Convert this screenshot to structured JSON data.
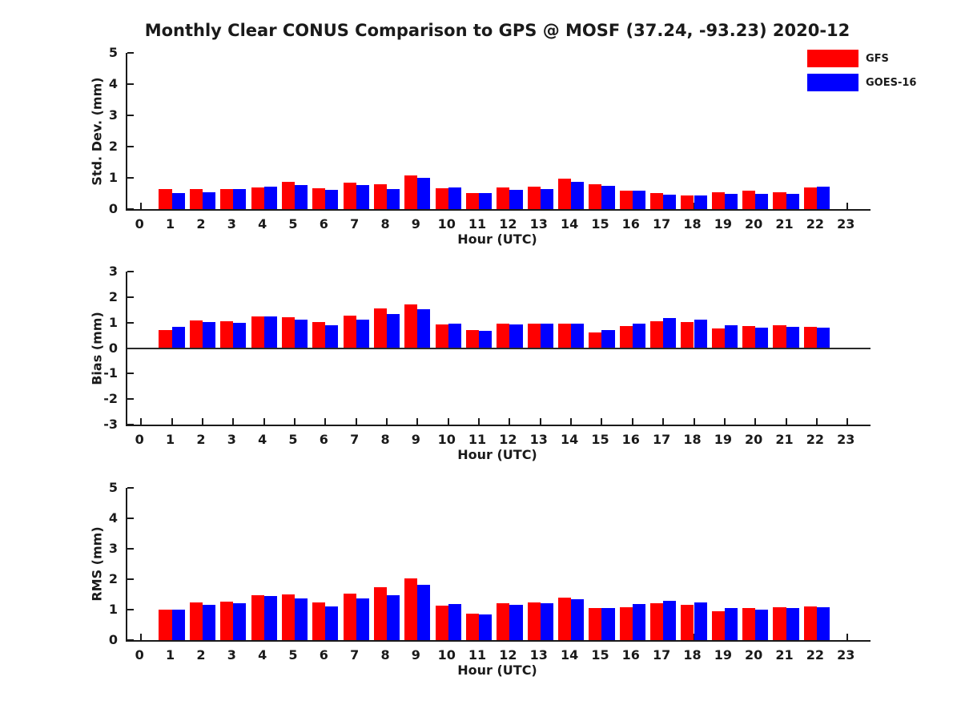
{
  "figure": {
    "title": "Monthly Clear CONUS Comparison to GPS @ MOSF (37.24, -93.23) 2020-12",
    "background": "#ffffff",
    "text_color": "#1a1a1a",
    "legend": [
      {
        "label": "GFS",
        "color": "#ff0000"
      },
      {
        "label": "GOES-16",
        "color": "#0000ff"
      }
    ]
  },
  "chart_data": [
    {
      "type": "bar",
      "panel": "std-dev",
      "title": "Monthly Clear CONUS Comparison to GPS @ MOSF (37.24, -93.23) 2020-12",
      "xlabel": "Hour (UTC)",
      "ylabel": "Std. Dev. (mm)",
      "ylim": [
        0,
        5
      ],
      "yticks": [
        0,
        1,
        2,
        3,
        4,
        5
      ],
      "xticks": [
        0,
        1,
        2,
        3,
        4,
        5,
        6,
        7,
        8,
        9,
        10,
        11,
        12,
        13,
        14,
        15,
        16,
        17,
        18,
        19,
        20,
        21,
        22,
        23
      ],
      "categories": [
        0,
        1,
        2,
        3,
        4,
        5,
        6,
        7,
        8,
        9,
        10,
        11,
        12,
        13,
        14,
        15,
        16,
        17,
        18,
        19,
        20,
        21,
        22,
        23
      ],
      "grid": false,
      "legend_entries": [
        "GFS",
        "GOES-16"
      ],
      "legend_position": "upper-right-above-axes",
      "series": [
        {
          "name": "GFS",
          "color": "#ff0000",
          "values": [
            null,
            0.65,
            0.63,
            0.65,
            0.68,
            0.87,
            0.67,
            0.85,
            0.8,
            1.08,
            0.66,
            0.51,
            0.68,
            0.73,
            0.98,
            0.8,
            0.6,
            0.51,
            0.43,
            0.54,
            0.58,
            0.55,
            0.7,
            null
          ]
        },
        {
          "name": "GOES-16",
          "color": "#0000ff",
          "values": [
            null,
            0.52,
            0.55,
            0.65,
            0.73,
            0.77,
            0.62,
            0.77,
            0.64,
            0.99,
            0.7,
            0.51,
            0.62,
            0.64,
            0.87,
            0.74,
            0.6,
            0.45,
            0.43,
            0.48,
            0.48,
            0.5,
            0.73,
            null
          ]
        }
      ]
    },
    {
      "type": "bar",
      "panel": "bias",
      "xlabel": "Hour (UTC)",
      "ylabel": "Bias (mm)",
      "ylim": [
        -3,
        3
      ],
      "yticks": [
        -3,
        -2,
        -1,
        0,
        1,
        2,
        3
      ],
      "xticks": [
        0,
        1,
        2,
        3,
        4,
        5,
        6,
        7,
        8,
        9,
        10,
        11,
        12,
        13,
        14,
        15,
        16,
        17,
        18,
        19,
        20,
        21,
        22,
        23
      ],
      "categories": [
        0,
        1,
        2,
        3,
        4,
        5,
        6,
        7,
        8,
        9,
        10,
        11,
        12,
        13,
        14,
        15,
        16,
        17,
        18,
        19,
        20,
        21,
        22,
        23
      ],
      "grid": false,
      "zero_line": true,
      "series": [
        {
          "name": "GFS",
          "color": "#ff0000",
          "values": [
            null,
            0.7,
            1.08,
            1.05,
            1.25,
            1.2,
            1.01,
            1.26,
            1.55,
            1.7,
            0.93,
            0.7,
            0.95,
            0.97,
            0.95,
            0.6,
            0.87,
            1.05,
            1.03,
            0.76,
            0.86,
            0.88,
            0.83,
            null
          ]
        },
        {
          "name": "GOES-16",
          "color": "#0000ff",
          "values": [
            null,
            0.82,
            1.01,
            0.98,
            1.23,
            1.1,
            0.88,
            1.1,
            1.33,
            1.52,
            0.96,
            0.66,
            0.93,
            0.97,
            0.95,
            0.71,
            0.97,
            1.18,
            1.12,
            0.91,
            0.81,
            0.84,
            0.79,
            null
          ]
        }
      ]
    },
    {
      "type": "bar",
      "panel": "rms",
      "xlabel": "Hour (UTC)",
      "ylabel": "RMS (mm)",
      "ylim": [
        0,
        5
      ],
      "yticks": [
        0,
        1,
        2,
        3,
        4,
        5
      ],
      "xticks": [
        0,
        1,
        2,
        3,
        4,
        5,
        6,
        7,
        8,
        9,
        10,
        11,
        12,
        13,
        14,
        15,
        16,
        17,
        18,
        19,
        20,
        21,
        22,
        23
      ],
      "categories": [
        0,
        1,
        2,
        3,
        4,
        5,
        6,
        7,
        8,
        9,
        10,
        11,
        12,
        13,
        14,
        15,
        16,
        17,
        18,
        19,
        20,
        21,
        22,
        23
      ],
      "grid": false,
      "series": [
        {
          "name": "GFS",
          "color": "#ff0000",
          "values": [
            null,
            1.0,
            1.25,
            1.27,
            1.47,
            1.5,
            1.23,
            1.53,
            1.74,
            2.03,
            1.13,
            0.88,
            1.2,
            1.25,
            1.4,
            1.04,
            1.08,
            1.21,
            1.16,
            0.96,
            1.04,
            1.07,
            1.1,
            null
          ]
        },
        {
          "name": "GOES-16",
          "color": "#0000ff",
          "values": [
            null,
            0.99,
            1.17,
            1.21,
            1.44,
            1.38,
            1.1,
            1.38,
            1.48,
            1.81,
            1.18,
            0.85,
            1.15,
            1.21,
            1.34,
            1.04,
            1.18,
            1.3,
            1.25,
            1.06,
            1.0,
            1.04,
            1.07,
            null
          ]
        }
      ]
    }
  ]
}
